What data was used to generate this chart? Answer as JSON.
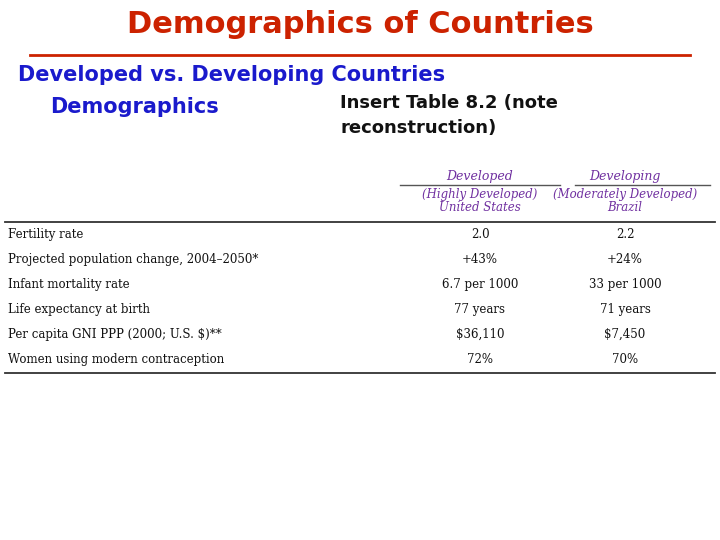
{
  "title": "Demographics of Countries",
  "title_color": "#CC2200",
  "subtitle_line1": "Developed vs. Developing Countries",
  "subtitle_line2": "Demographics",
  "subtitle_color": "#1a1acc",
  "insert_text": "Insert Table 8.2 (note\nreconstruction)",
  "insert_color": "#111111",
  "col_headers": [
    "Developed",
    "Developing"
  ],
  "col_headers_color": "#7030a0",
  "sub_header1_line1": "(Highly Developed)",
  "sub_header1_line2": "United States",
  "sub_header2_line1": "(Moderately Developed)",
  "sub_header2_line2": "Brazil",
  "sub_headers_color": "#7030a0",
  "row_labels": [
    "Fertility rate",
    "Projected population change, 2004–2050*",
    "Infant mortality rate",
    "Life expectancy at birth",
    "Per capita GNI PPP (2000; U.S. $)**",
    "Women using modern contraception"
  ],
  "col1_values": [
    "2.0",
    "+43%",
    "6.7 per 1000",
    "77 years",
    "$36,110",
    "72%"
  ],
  "col2_values": [
    "2.2",
    "+24%",
    "33 per 1000",
    "71 years",
    "$7,450",
    "70%"
  ],
  "background_color": "#ffffff",
  "table_text_color": "#111111",
  "line_color": "#555555",
  "thick_line_color": "#333333"
}
